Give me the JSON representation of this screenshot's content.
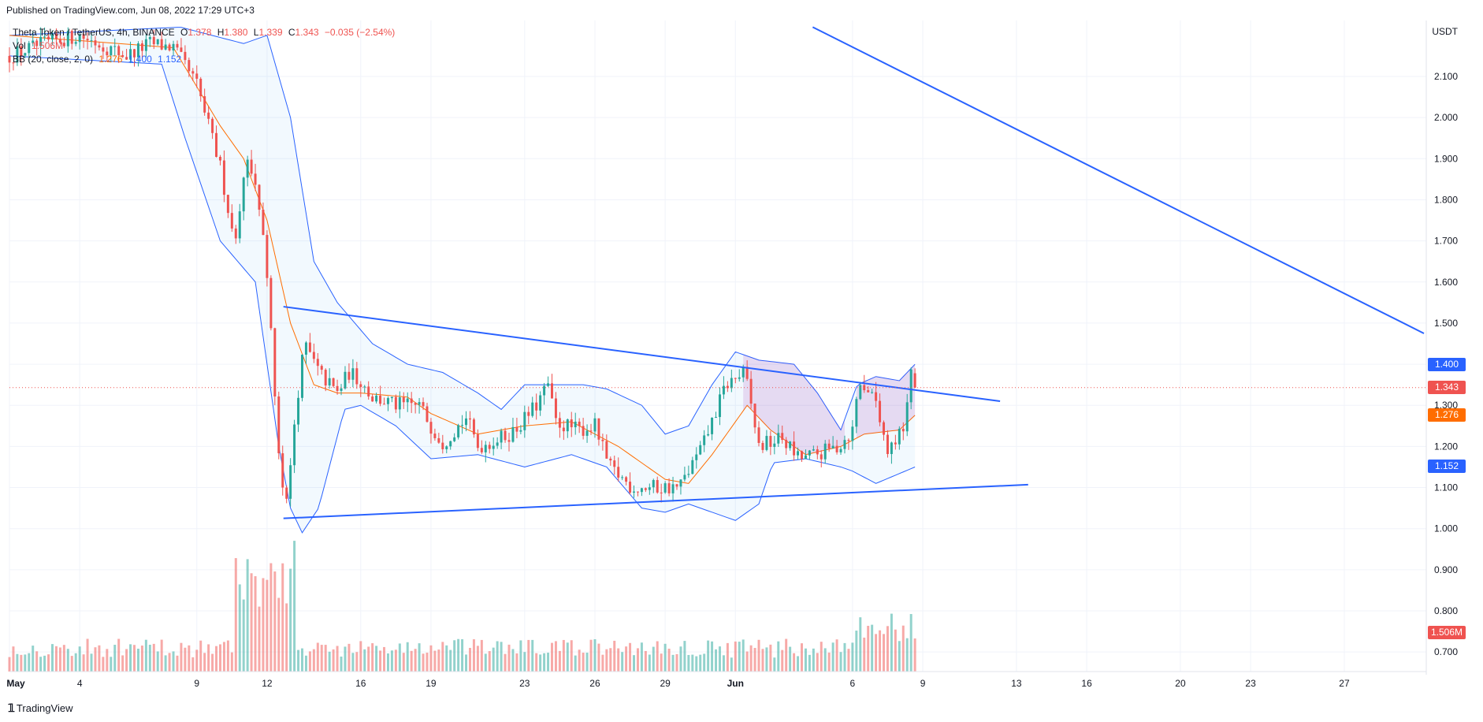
{
  "published": "Published on TradingView.com, Jun 08, 2022 17:29 UTC+3",
  "legend": {
    "symbol": "Theta Token / TetherUS, 4h, BINANCE",
    "o_label": "O",
    "o": "1.378",
    "h_label": "H",
    "h": "1.380",
    "l_label": "L",
    "l": "1.339",
    "c_label": "C",
    "c": "1.343",
    "change": "−0.035 (−2.54%)",
    "vol_label": "Vol",
    "vol": "1.506M",
    "bb_label": "BB (20, close, 2, 0)",
    "bb_basis": "1.276",
    "bb_upper": "1.400",
    "bb_lower": "1.152"
  },
  "footer": {
    "brand": "TradingView"
  },
  "colors": {
    "up": "#26a69a",
    "down": "#ef5350",
    "bb_basis": "#ff6d00",
    "bb_band": "#2962ff",
    "trendline": "#2962ff",
    "pattern_fill": "#9c27b0",
    "grid": "#f0f3fa"
  },
  "price_tags": [
    {
      "label": "1.400",
      "price": 1.4,
      "color": "#2962ff"
    },
    {
      "label": "1.343",
      "price": 1.343,
      "color": "#ef5350"
    },
    {
      "label": "1.276",
      "price": 1.276,
      "color": "#ff6d00"
    },
    {
      "label": "1.152",
      "price": 1.152,
      "color": "#2962ff"
    },
    {
      "label": "1.506M",
      "price": 0.748,
      "color": "#ef5350"
    }
  ],
  "chart_data": {
    "type": "candlestick",
    "title": "Theta Token / TetherUS, 4h, BINANCE",
    "ylabel": "USDT",
    "ylim": [
      0.72,
      2.22
    ],
    "y_ticks": [
      "2.100",
      "2.000",
      "1.900",
      "1.800",
      "1.700",
      "1.600",
      "1.500",
      "1.400",
      "1.300",
      "1.200",
      "1.100",
      "1.000",
      "0.900",
      "0.800",
      "0.700"
    ],
    "x_ticks": [
      {
        "label": "May",
        "day": 0
      },
      {
        "label": "4",
        "day": 3
      },
      {
        "label": "9",
        "day": 8
      },
      {
        "label": "12",
        "day": 11
      },
      {
        "label": "16",
        "day": 15
      },
      {
        "label": "19",
        "day": 18
      },
      {
        "label": "23",
        "day": 22
      },
      {
        "label": "26",
        "day": 25
      },
      {
        "label": "29",
        "day": 28
      },
      {
        "label": "Jun",
        "day": 31
      },
      {
        "label": "6",
        "day": 36
      },
      {
        "label": "9",
        "day": 39
      },
      {
        "label": "13",
        "day": 43
      },
      {
        "label": "16",
        "day": 46
      },
      {
        "label": "20",
        "day": 50
      },
      {
        "label": "23",
        "day": 53
      },
      {
        "label": "27",
        "day": 57
      }
    ],
    "xlim_days": [
      0,
      60.5
    ],
    "last_day": 38.67,
    "price_path": [
      [
        0,
        2.15
      ],
      [
        1.5,
        2.18
      ],
      [
        3,
        2.2
      ],
      [
        5,
        2.15
      ],
      [
        6,
        2.18
      ],
      [
        7,
        2.17
      ],
      [
        8,
        2.08
      ],
      [
        9,
        1.88
      ],
      [
        9.6,
        1.7
      ],
      [
        10.2,
        1.92
      ],
      [
        10.8,
        1.75
      ],
      [
        11.2,
        1.45
      ],
      [
        11.5,
        1.2
      ],
      [
        11.8,
        1.05
      ],
      [
        12.2,
        1.28
      ],
      [
        12.6,
        1.45
      ],
      [
        13.2,
        1.38
      ],
      [
        14,
        1.33
      ],
      [
        14.5,
        1.38
      ],
      [
        15,
        1.36
      ],
      [
        15.5,
        1.32
      ],
      [
        16.5,
        1.3
      ],
      [
        17.5,
        1.3
      ],
      [
        18,
        1.25
      ],
      [
        18.5,
        1.21
      ],
      [
        19.5,
        1.27
      ],
      [
        20,
        1.2
      ],
      [
        21,
        1.22
      ],
      [
        21.6,
        1.24
      ],
      [
        22.5,
        1.3
      ],
      [
        23,
        1.35
      ],
      [
        23.3,
        1.26
      ],
      [
        24.3,
        1.24
      ],
      [
        25,
        1.25
      ],
      [
        25.6,
        1.15
      ],
      [
        26.6,
        1.1
      ],
      [
        27.6,
        1.1
      ],
      [
        28.6,
        1.1
      ],
      [
        29.6,
        1.2
      ],
      [
        30.6,
        1.35
      ],
      [
        31.4,
        1.38
      ],
      [
        32,
        1.2
      ],
      [
        33,
        1.22
      ],
      [
        33.7,
        1.17
      ],
      [
        34.5,
        1.18
      ],
      [
        35.4,
        1.2
      ],
      [
        36,
        1.24
      ],
      [
        36.3,
        1.37
      ],
      [
        37,
        1.3
      ],
      [
        37.5,
        1.2
      ],
      [
        38.2,
        1.25
      ],
      [
        38.5,
        1.39
      ],
      [
        38.67,
        1.343
      ]
    ],
    "bb_basis_path": [
      [
        0,
        2.2
      ],
      [
        7,
        2.17
      ],
      [
        9,
        1.98
      ],
      [
        10,
        1.9
      ],
      [
        11,
        1.75
      ],
      [
        12,
        1.5
      ],
      [
        13,
        1.35
      ],
      [
        14,
        1.33
      ],
      [
        15,
        1.33
      ],
      [
        17,
        1.32
      ],
      [
        18,
        1.28
      ],
      [
        20,
        1.23
      ],
      [
        22,
        1.25
      ],
      [
        24,
        1.26
      ],
      [
        26,
        1.2
      ],
      [
        28,
        1.12
      ],
      [
        29,
        1.11
      ],
      [
        30,
        1.18
      ],
      [
        31.5,
        1.3
      ],
      [
        32.5,
        1.24
      ],
      [
        34,
        1.18
      ],
      [
        35.5,
        1.2
      ],
      [
        36.5,
        1.23
      ],
      [
        38,
        1.24
      ],
      [
        38.67,
        1.276
      ]
    ],
    "bb_upper_path": [
      [
        0,
        2.2
      ],
      [
        7.3,
        2.22
      ],
      [
        10,
        2.18
      ],
      [
        11,
        2.2
      ],
      [
        12,
        2.0
      ],
      [
        13,
        1.65
      ],
      [
        14,
        1.55
      ],
      [
        15.5,
        1.45
      ],
      [
        17,
        1.4
      ],
      [
        18.5,
        1.38
      ],
      [
        20,
        1.33
      ],
      [
        21,
        1.29
      ],
      [
        22,
        1.35
      ],
      [
        24.5,
        1.35
      ],
      [
        25.5,
        1.34
      ],
      [
        27,
        1.3
      ],
      [
        28,
        1.23
      ],
      [
        29,
        1.25
      ],
      [
        30,
        1.35
      ],
      [
        31,
        1.43
      ],
      [
        32,
        1.41
      ],
      [
        33.5,
        1.4
      ],
      [
        34.5,
        1.33
      ],
      [
        35.5,
        1.24
      ],
      [
        36.2,
        1.35
      ],
      [
        37,
        1.37
      ],
      [
        38,
        1.36
      ],
      [
        38.67,
        1.4
      ]
    ],
    "bb_lower_path": [
      [
        0,
        2.15
      ],
      [
        6.5,
        2.13
      ],
      [
        7.5,
        1.95
      ],
      [
        9,
        1.7
      ],
      [
        10.5,
        1.6
      ],
      [
        11.5,
        1.2
      ],
      [
        12,
        1.05
      ],
      [
        12.5,
        0.99
      ],
      [
        13.2,
        1.05
      ],
      [
        14.3,
        1.29
      ],
      [
        15,
        1.3
      ],
      [
        16.5,
        1.25
      ],
      [
        18,
        1.17
      ],
      [
        20,
        1.18
      ],
      [
        22,
        1.15
      ],
      [
        24,
        1.18
      ],
      [
        25.5,
        1.15
      ],
      [
        27,
        1.05
      ],
      [
        28,
        1.04
      ],
      [
        29,
        1.06
      ],
      [
        30,
        1.04
      ],
      [
        31,
        1.02
      ],
      [
        32,
        1.06
      ],
      [
        32.6,
        1.16
      ],
      [
        34,
        1.17
      ],
      [
        35.5,
        1.15
      ],
      [
        36,
        1.14
      ],
      [
        37,
        1.11
      ],
      [
        38.67,
        1.15
      ]
    ],
    "drawings": [
      {
        "type": "trendline",
        "from": [
          11.7,
          1.54
        ],
        "to": [
          42.3,
          1.31
        ]
      },
      {
        "type": "trendline",
        "from": [
          11.7,
          1.025
        ],
        "to": [
          43.5,
          1.107
        ]
      },
      {
        "type": "trendline",
        "from": [
          34.3,
          2.22
        ],
        "to": [
          60.4,
          1.475
        ]
      }
    ],
    "highlighted_patterns": [
      {
        "from_day": 31.3,
        "to_day": 35.7
      },
      {
        "from_day": 36.1,
        "to_day": 38.7
      }
    ],
    "volume": {
      "last": "1.506M",
      "unit": "M"
    }
  }
}
